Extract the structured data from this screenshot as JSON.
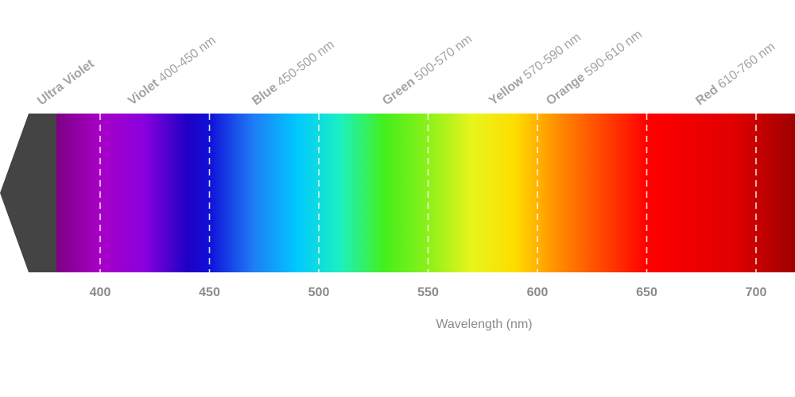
{
  "colors": {
    "uv_block": "#444444",
    "boundary_line": "#ffffff",
    "label_text": "#a3a3a3",
    "tick_text": "#8a8a8a",
    "gradient_stops": [
      {
        "nm": 380,
        "color": "#7d0084"
      },
      {
        "nm": 400,
        "color": "#a800c6"
      },
      {
        "nm": 420,
        "color": "#8a00de"
      },
      {
        "nm": 440,
        "color": "#1f00c4"
      },
      {
        "nm": 450,
        "color": "#1010d8"
      },
      {
        "nm": 470,
        "color": "#1f7cf5"
      },
      {
        "nm": 490,
        "color": "#00c8ff"
      },
      {
        "nm": 510,
        "color": "#1cf0c0"
      },
      {
        "nm": 530,
        "color": "#44ef1c"
      },
      {
        "nm": 550,
        "color": "#8cf01a"
      },
      {
        "nm": 570,
        "color": "#e8f51c"
      },
      {
        "nm": 590,
        "color": "#ffdc00"
      },
      {
        "nm": 610,
        "color": "#ff8a00"
      },
      {
        "nm": 630,
        "color": "#ff4500"
      },
      {
        "nm": 650,
        "color": "#ff0000"
      },
      {
        "nm": 690,
        "color": "#e00000"
      },
      {
        "nm": 720,
        "color": "#9e0000"
      }
    ]
  },
  "bands": [
    {
      "name": "Ultra Violet",
      "range": ""
    },
    {
      "name": "Violet",
      "range": "400-450 nm"
    },
    {
      "name": "Blue",
      "range": "450-500 nm"
    },
    {
      "name": "Green",
      "range": "500-570 nm"
    },
    {
      "name": "Yellow",
      "range": "570-590 nm"
    },
    {
      "name": "Orange",
      "range": "590-610 nm"
    },
    {
      "name": "Red",
      "range": "610-760 nm"
    }
  ],
  "boundaries_nm": [
    400,
    450,
    500,
    550,
    600,
    650,
    700
  ],
  "ticks": [
    {
      "value": 400,
      "label": "400"
    },
    {
      "value": 450,
      "label": "450"
    },
    {
      "value": 500,
      "label": "500"
    },
    {
      "value": 550,
      "label": "550"
    },
    {
      "value": 600,
      "label": "600"
    },
    {
      "value": 650,
      "label": "650"
    },
    {
      "value": 700,
      "label": "700"
    }
  ],
  "axis": {
    "title": "Wavelength (nm)",
    "range_nm": [
      380,
      720
    ]
  }
}
